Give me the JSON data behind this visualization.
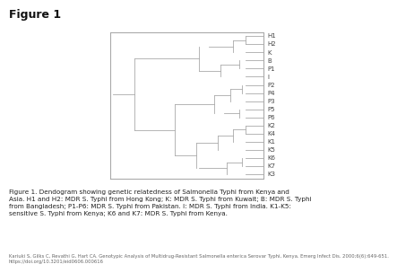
{
  "title": "Figure 1",
  "labels": [
    "H1",
    "H2",
    "K",
    "B",
    "P1",
    "I",
    "P2",
    "P4",
    "P3",
    "P5",
    "P6",
    "K2",
    "K4",
    "K1",
    "K5",
    "K6",
    "K7",
    "K3"
  ],
  "caption": "Figure 1. Dendogram showing genetic relatedness of Salmonella Typhi from Kenya and\nAsia. H1 and H2: MDR S. Typhi from Hong Kong; K: MDR S. Typhi from Kuwait; B: MDR S. Typhi\nfrom Bangladesh; P1-P6: MDR S. Typhi from Pakistan. I: MDR S. Typhi from India. K1-K5:\nsensitive S. Typhi from Kenya; K6 and K7: MDR S. Typhi from Kenya.",
  "ref": "Kariuki S, Gilks C, Revathi G, Hart CA. Genotypic Analysis of Multidrug-Resistant Salmonella enterica Serovar Typhi, Kenya. Emerg Infect Dis. 2000;6(6):649-651.\nhttps://doi.org/10.3201/eid0606.000616",
  "line_color": "#aaaaaa",
  "box_edge_color": "#aaaaaa",
  "background": "#ffffff",
  "label_color": "#444444",
  "title_color": "#111111",
  "caption_color": "#222222",
  "ref_color": "#666666"
}
